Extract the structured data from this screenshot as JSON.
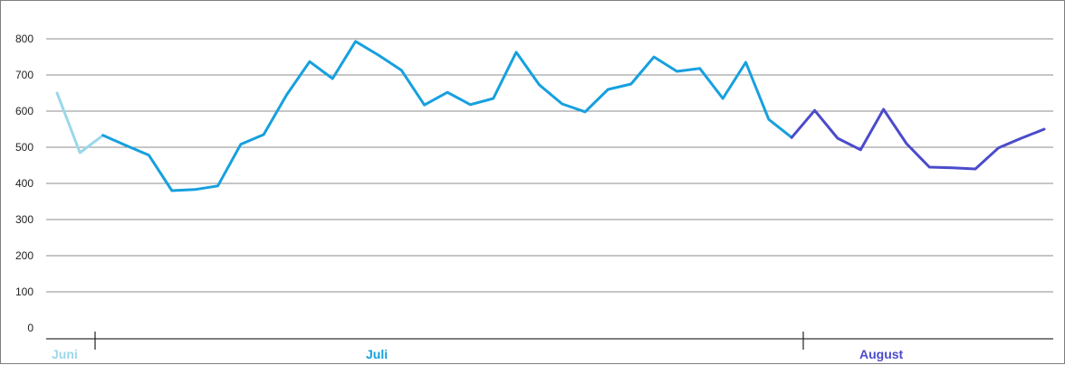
{
  "chart_data": {
    "type": "line",
    "title": "",
    "xlabel": "",
    "ylabel": "",
    "ylim": [
      0,
      800
    ],
    "yticks": [
      "0",
      "100",
      "200",
      "300",
      "400",
      "500",
      "600",
      "700",
      "800"
    ],
    "grid": true,
    "months": [
      {
        "label": "Juni",
        "color": "#9ad8ea"
      },
      {
        "label": "Juli",
        "color": "#16a0df"
      },
      {
        "label": "August",
        "color": "#4b4bcc"
      }
    ],
    "series": [
      {
        "month_index": 0,
        "values": [
          650,
          485,
          533
        ]
      },
      {
        "month_index": 1,
        "values": [
          533,
          505,
          478,
          380,
          383,
          393,
          508,
          535,
          645,
          737,
          690,
          793,
          755,
          713,
          617,
          652,
          618,
          635,
          763,
          673,
          620,
          598,
          660,
          675,
          750,
          710,
          718,
          635,
          735,
          577,
          527
        ]
      },
      {
        "month_index": 2,
        "values": [
          527,
          602,
          525,
          493,
          605,
          510,
          445,
          443,
          440,
          498,
          525,
          550
        ]
      }
    ]
  }
}
